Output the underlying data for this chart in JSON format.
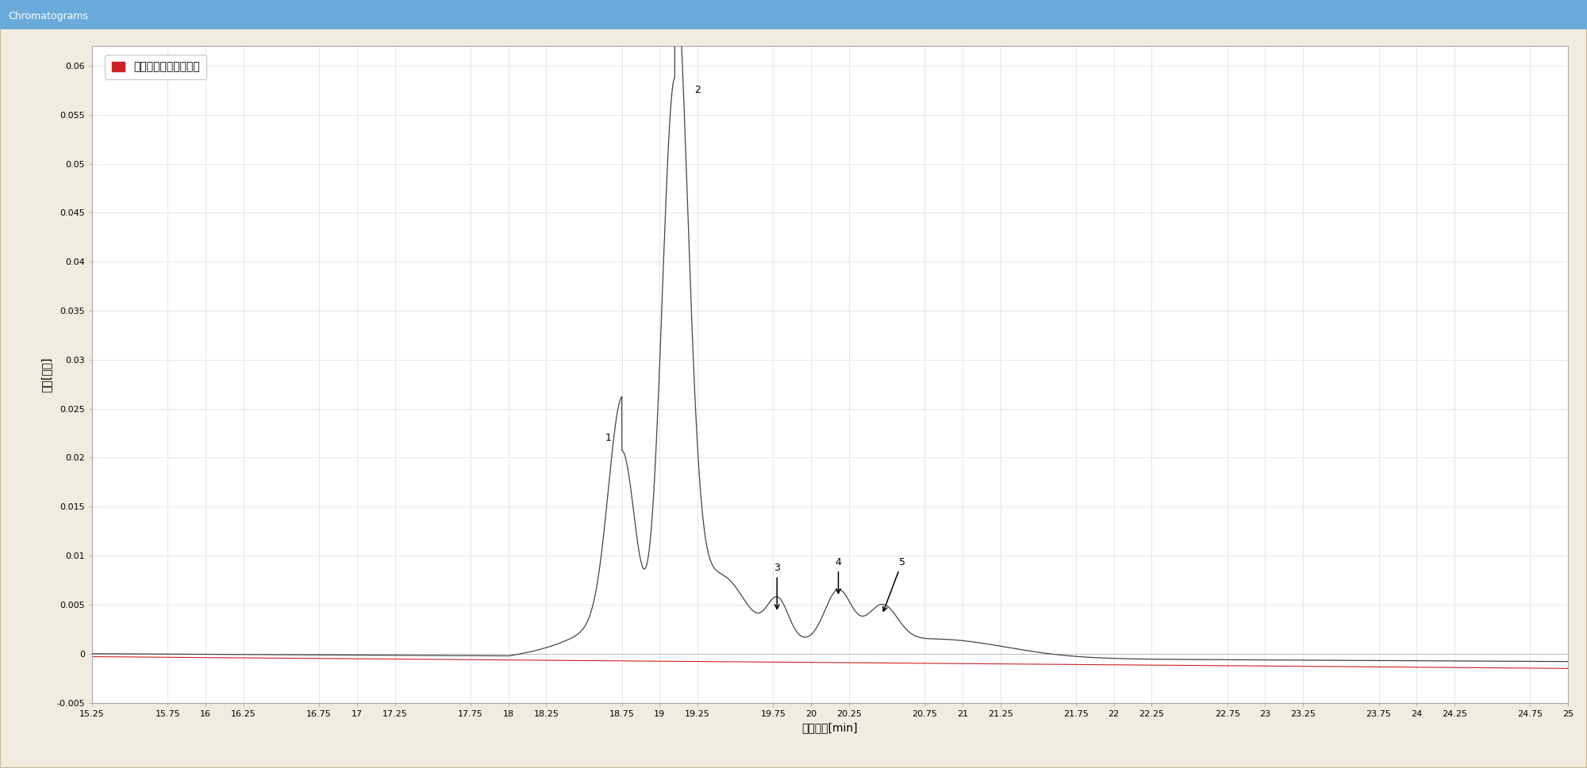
{
  "title": "Chromatograms",
  "xlabel": "保留时间[min]",
  "ylabel": "强度[计数]",
  "legend_label": "样品进样前的空白进样",
  "legend_color": "#cc2222",
  "xlim": [
    15.25,
    25.0
  ],
  "ylim": [
    -0.005,
    0.062
  ],
  "yticks": [
    -0.005,
    0.0,
    0.005,
    0.01,
    0.015,
    0.02,
    0.025,
    0.03,
    0.035,
    0.04,
    0.045,
    0.05,
    0.055,
    0.06
  ],
  "xtick_labels": [
    "15.25",
    "15.75",
    "16",
    "16.25",
    "16.75",
    "17",
    "17.25",
    "17.75",
    "18",
    "18.25",
    "18.75",
    "19",
    "19.25",
    "19.75",
    "20",
    "20.25",
    "20.75",
    "21",
    "21.25",
    "21.75",
    "22",
    "22.25",
    "22.75",
    "23",
    "23.25",
    "23.75",
    "24",
    "24.25",
    "24.75",
    "25"
  ],
  "xtick_positions": [
    15.25,
    15.75,
    16.0,
    16.25,
    16.75,
    17.0,
    17.25,
    17.75,
    18.0,
    18.25,
    18.75,
    19.0,
    19.25,
    19.75,
    20.0,
    20.25,
    20.75,
    21.0,
    21.25,
    21.75,
    22.0,
    22.25,
    22.75,
    23.0,
    23.25,
    23.75,
    24.0,
    24.25,
    24.75,
    25.0
  ],
  "plot_bg": "#ffffff",
  "fig_bg": "#f0ece0",
  "header_bg": "#6aabdc",
  "header_text_color": "#ffffff",
  "outer_border_color": "#c8b89a",
  "line_color": "#444444",
  "red_line_color": "#cc2222",
  "grid_color": "#dddddd",
  "annotation_fontsize": 9,
  "tick_fontsize": 8,
  "label_fontsize": 10
}
